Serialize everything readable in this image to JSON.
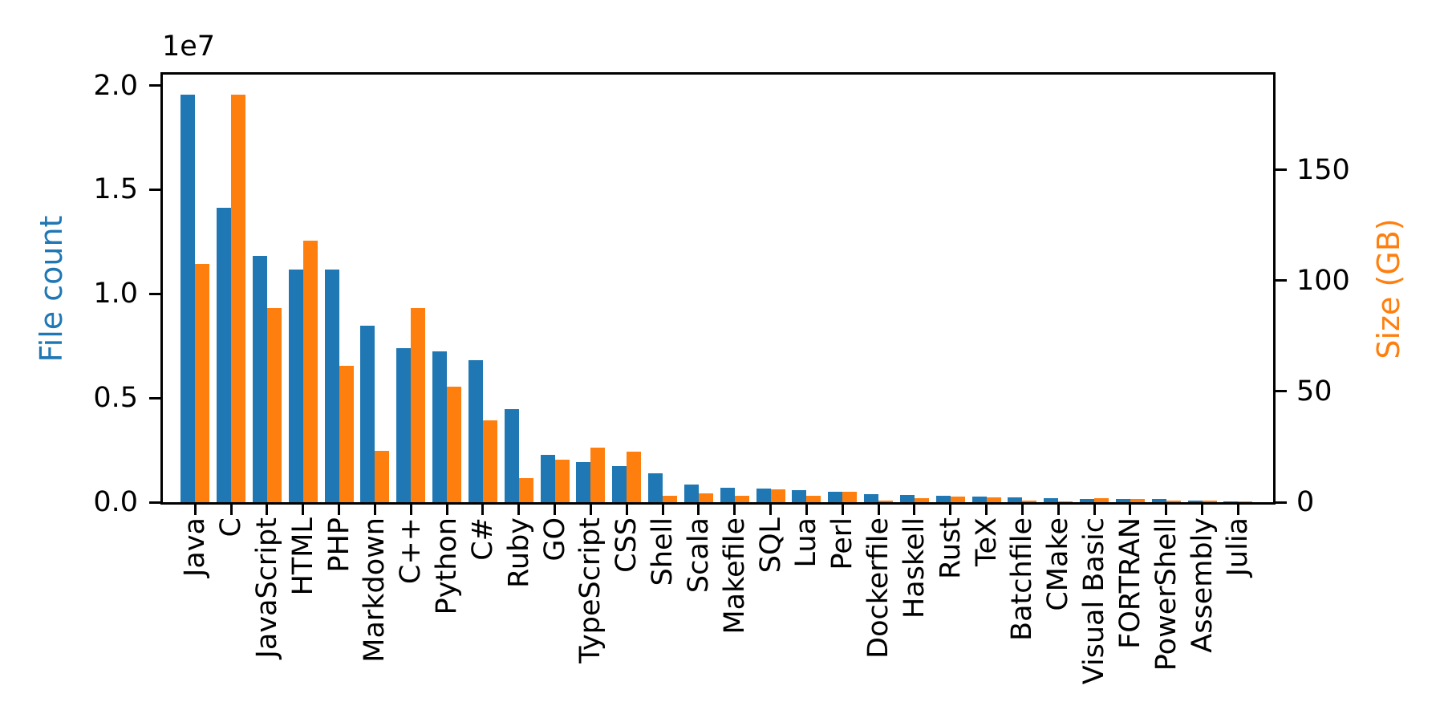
{
  "chart_data": {
    "type": "bar",
    "categories": [
      "Java",
      "C",
      "JavaScript",
      "HTML",
      "PHP",
      "Markdown",
      "C++",
      "Python",
      "C#",
      "Ruby",
      "GO",
      "TypeScript",
      "CSS",
      "Shell",
      "Scala",
      "Makefile",
      "SQL",
      "Lua",
      "Perl",
      "Dockerfile",
      "Haskell",
      "Rust",
      "TeX",
      "Batchfile",
      "CMake",
      "Visual Basic",
      "FORTRAN",
      "PowerShell",
      "Assembly",
      "Julia"
    ],
    "series": [
      {
        "name": "File count",
        "axis": "left",
        "color": "#1f77b4",
        "values": [
          19548190,
          14143113,
          11839883,
          11178557,
          11177610,
          8464626,
          7380520,
          7226626,
          6811652,
          4473331,
          2265436,
          1940406,
          1734406,
          1385648,
          835755,
          679430,
          656671,
          578554,
          497949,
          366505,
          340623,
          322431,
          251015,
          236945,
          175282,
          155652,
          142038,
          136846,
          82905,
          58317
        ]
      },
      {
        "name": "Size (GB)",
        "axis": "right",
        "color": "#ff7f0e",
        "values": [
          107.7,
          183.83,
          87.82,
          118.12,
          61.41,
          23.09,
          87.73,
          52.03,
          36.83,
          10.95,
          19.28,
          24.59,
          22.67,
          3.01,
          3.87,
          2.92,
          5.67,
          2.81,
          4.7,
          0.71,
          1.85,
          2.68,
          2.15,
          0.7,
          0.54,
          1.91,
          1.62,
          0.69,
          0.78,
          0.29
        ]
      }
    ],
    "left_axis": {
      "label": "File count",
      "color": "#1f77b4",
      "offset_text": "1e7",
      "tick_values": [
        0,
        5000000,
        10000000,
        15000000,
        20000000
      ],
      "tick_labels": [
        "0.0",
        "0.5",
        "1.0",
        "1.5",
        "2.0"
      ],
      "range": [
        0,
        20525600
      ]
    },
    "right_axis": {
      "label": "Size (GB)",
      "color": "#ff7f0e",
      "tick_values": [
        0,
        50,
        100,
        150
      ],
      "tick_labels": [
        "0",
        "50",
        "100",
        "150"
      ],
      "range": [
        0,
        193.02
      ]
    },
    "grid": false,
    "legend": "none"
  }
}
